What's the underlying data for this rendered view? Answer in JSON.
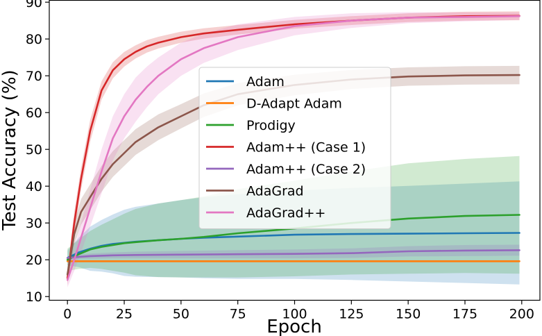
{
  "chart_data": {
    "type": "line",
    "title": "",
    "xlabel": "Epoch",
    "ylabel": "Test Accuracy (%)",
    "xlim": [
      -8,
      208
    ],
    "ylim": [
      9,
      90.5
    ],
    "xticks": [
      0,
      25,
      50,
      75,
      100,
      125,
      150,
      175,
      200
    ],
    "yticks": [
      10,
      20,
      30,
      40,
      50,
      60,
      70,
      80,
      90
    ],
    "grid": false,
    "legend": "center",
    "series": [
      {
        "name": "Adam",
        "color": "#1f77b4",
        "x": [
          0,
          5,
          10,
          15,
          20,
          25,
          30,
          40,
          50,
          60,
          75,
          100,
          125,
          150,
          175,
          199
        ],
        "y": [
          20.5,
          22,
          23,
          23.8,
          24.3,
          24.6,
          24.9,
          25.3,
          25.7,
          26.0,
          26.3,
          26.8,
          27.0,
          27.1,
          27.2,
          27.3
        ],
        "band": [
          2,
          4,
          6,
          7,
          8,
          9,
          9.5,
          10,
          10.5,
          11,
          11.5,
          12,
          12.5,
          13,
          13.5,
          14
        ]
      },
      {
        "name": "D-Adapt Adam",
        "color": "#ff7f0e",
        "x": [
          0,
          5,
          10,
          25,
          50,
          100,
          150,
          199
        ],
        "y": [
          19.6,
          19.6,
          19.6,
          19.6,
          19.6,
          19.6,
          19.6,
          19.6
        ],
        "band": [
          0.3,
          0.3,
          0.3,
          0.3,
          0.3,
          0.3,
          0.3,
          0.3
        ]
      },
      {
        "name": "Prodigy",
        "color": "#2ca02c",
        "x": [
          0,
          5,
          10,
          15,
          20,
          25,
          30,
          40,
          50,
          60,
          75,
          100,
          125,
          150,
          175,
          199
        ],
        "y": [
          20,
          21.5,
          22.8,
          23.5,
          24,
          24.5,
          24.8,
          25.3,
          25.7,
          26.2,
          27.2,
          28.5,
          30.0,
          31.2,
          31.9,
          32.2
        ],
        "band": [
          3,
          4,
          5,
          6,
          7,
          8,
          9,
          10,
          10.5,
          11,
          12,
          13,
          14,
          15,
          15.5,
          16
        ]
      },
      {
        "name": "Adam++ (Case 1)",
        "color": "#d62728",
        "x": [
          0,
          3,
          6,
          10,
          15,
          20,
          25,
          30,
          35,
          40,
          50,
          60,
          75,
          100,
          125,
          150,
          175,
          199
        ],
        "y": [
          15,
          30,
          42,
          55,
          66,
          71.5,
          74.5,
          76.5,
          78,
          79,
          80.5,
          81.5,
          82.5,
          84,
          85,
          85.8,
          86.2,
          86.3
        ],
        "band": [
          2,
          3,
          3,
          3,
          2.5,
          2.2,
          2,
          1.8,
          1.7,
          1.6,
          1.5,
          1.4,
          1.3,
          1.2,
          1.2,
          1.2,
          1.2,
          1.2
        ]
      },
      {
        "name": "Adam++ (Case 2)",
        "color": "#9467bd",
        "x": [
          0,
          5,
          10,
          20,
          30,
          50,
          75,
          100,
          125,
          150,
          175,
          199
        ],
        "y": [
          20.5,
          20.8,
          21,
          21.2,
          21.3,
          21.4,
          21.5,
          21.6,
          21.8,
          22.3,
          22.5,
          22.6
        ],
        "band": [
          0.5,
          0.6,
          0.7,
          0.8,
          0.9,
          1.0,
          1.1,
          1.2,
          1.3,
          1.4,
          1.5,
          1.5
        ]
      },
      {
        "name": "AdaGrad",
        "color": "#8c564b",
        "x": [
          0,
          3,
          6,
          10,
          15,
          20,
          25,
          30,
          40,
          50,
          60,
          75,
          100,
          125,
          150,
          175,
          199
        ],
        "y": [
          16,
          27,
          33,
          37,
          42,
          46,
          49,
          52,
          56,
          59,
          62,
          65,
          67.5,
          69,
          69.8,
          70.1,
          70.2
        ],
        "band": [
          2,
          3,
          3.5,
          3.5,
          3.5,
          3.5,
          3.5,
          3.5,
          3.5,
          3.3,
          3.2,
          3.0,
          2.8,
          2.6,
          2.5,
          2.5,
          2.5
        ]
      },
      {
        "name": "AdaGrad++",
        "color": "#e377c2",
        "x": [
          0,
          3,
          6,
          10,
          15,
          20,
          25,
          30,
          35,
          40,
          50,
          60,
          75,
          100,
          125,
          150,
          175,
          199
        ],
        "y": [
          14.5,
          20,
          26,
          34,
          44,
          53,
          59,
          63.5,
          67,
          70,
          74.5,
          77.5,
          80.5,
          83.5,
          85,
          85.8,
          86,
          86.2
        ],
        "band": [
          2,
          3,
          4,
          5,
          6,
          6,
          6,
          6,
          5.5,
          5,
          4.5,
          4,
          3.5,
          2.5,
          2,
          1.5,
          1.2,
          1
        ]
      }
    ]
  }
}
